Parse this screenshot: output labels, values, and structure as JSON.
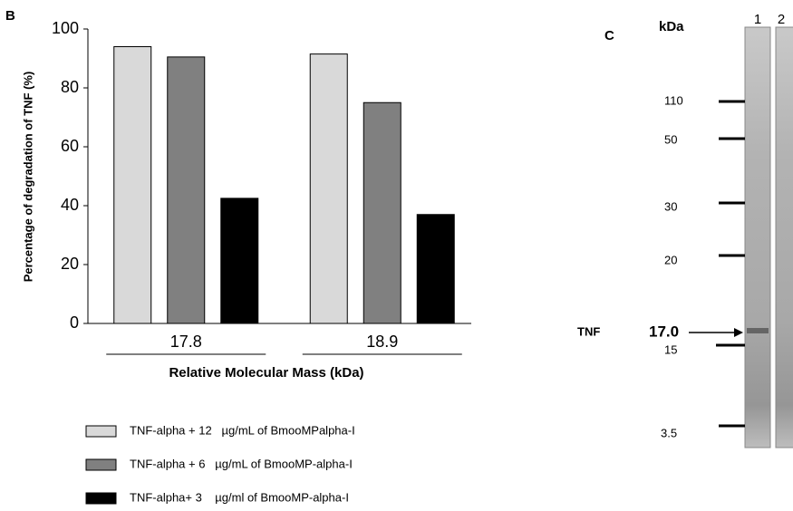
{
  "chart_data": {
    "type": "bar",
    "panel": "B",
    "y_label": "Percentage of degradation of TNF (%)",
    "x_label": "Relative Molecular Mass (kDa)",
    "categories": [
      "17.8",
      "18.9"
    ],
    "series": [
      {
        "name": "TNF-alpha + 12   µg/mL of BmooMPalpha-I",
        "color": "#d9d9d9",
        "values": [
          94,
          91.5
        ]
      },
      {
        "name": "TNF-alpha + 6   µg/mL of BmooMP-alpha-I",
        "color": "#808080",
        "values": [
          90.5,
          75
        ]
      },
      {
        "name": "TNF-alpha+ 3    µg/ml of BmooMP-alpha-I",
        "color": "#000000",
        "values": [
          42.5,
          37
        ]
      }
    ],
    "ylim": [
      0,
      100
    ],
    "yticks": [
      0,
      20,
      40,
      60,
      80,
      100
    ],
    "grid": false
  },
  "gel": {
    "panel": "C",
    "unit": "kDa",
    "lanes": [
      "1",
      "2"
    ],
    "markers": [
      "110",
      "50",
      "30",
      "20",
      "15",
      "3.5"
    ],
    "band_label": "TNF",
    "band_mass": "17.0"
  }
}
